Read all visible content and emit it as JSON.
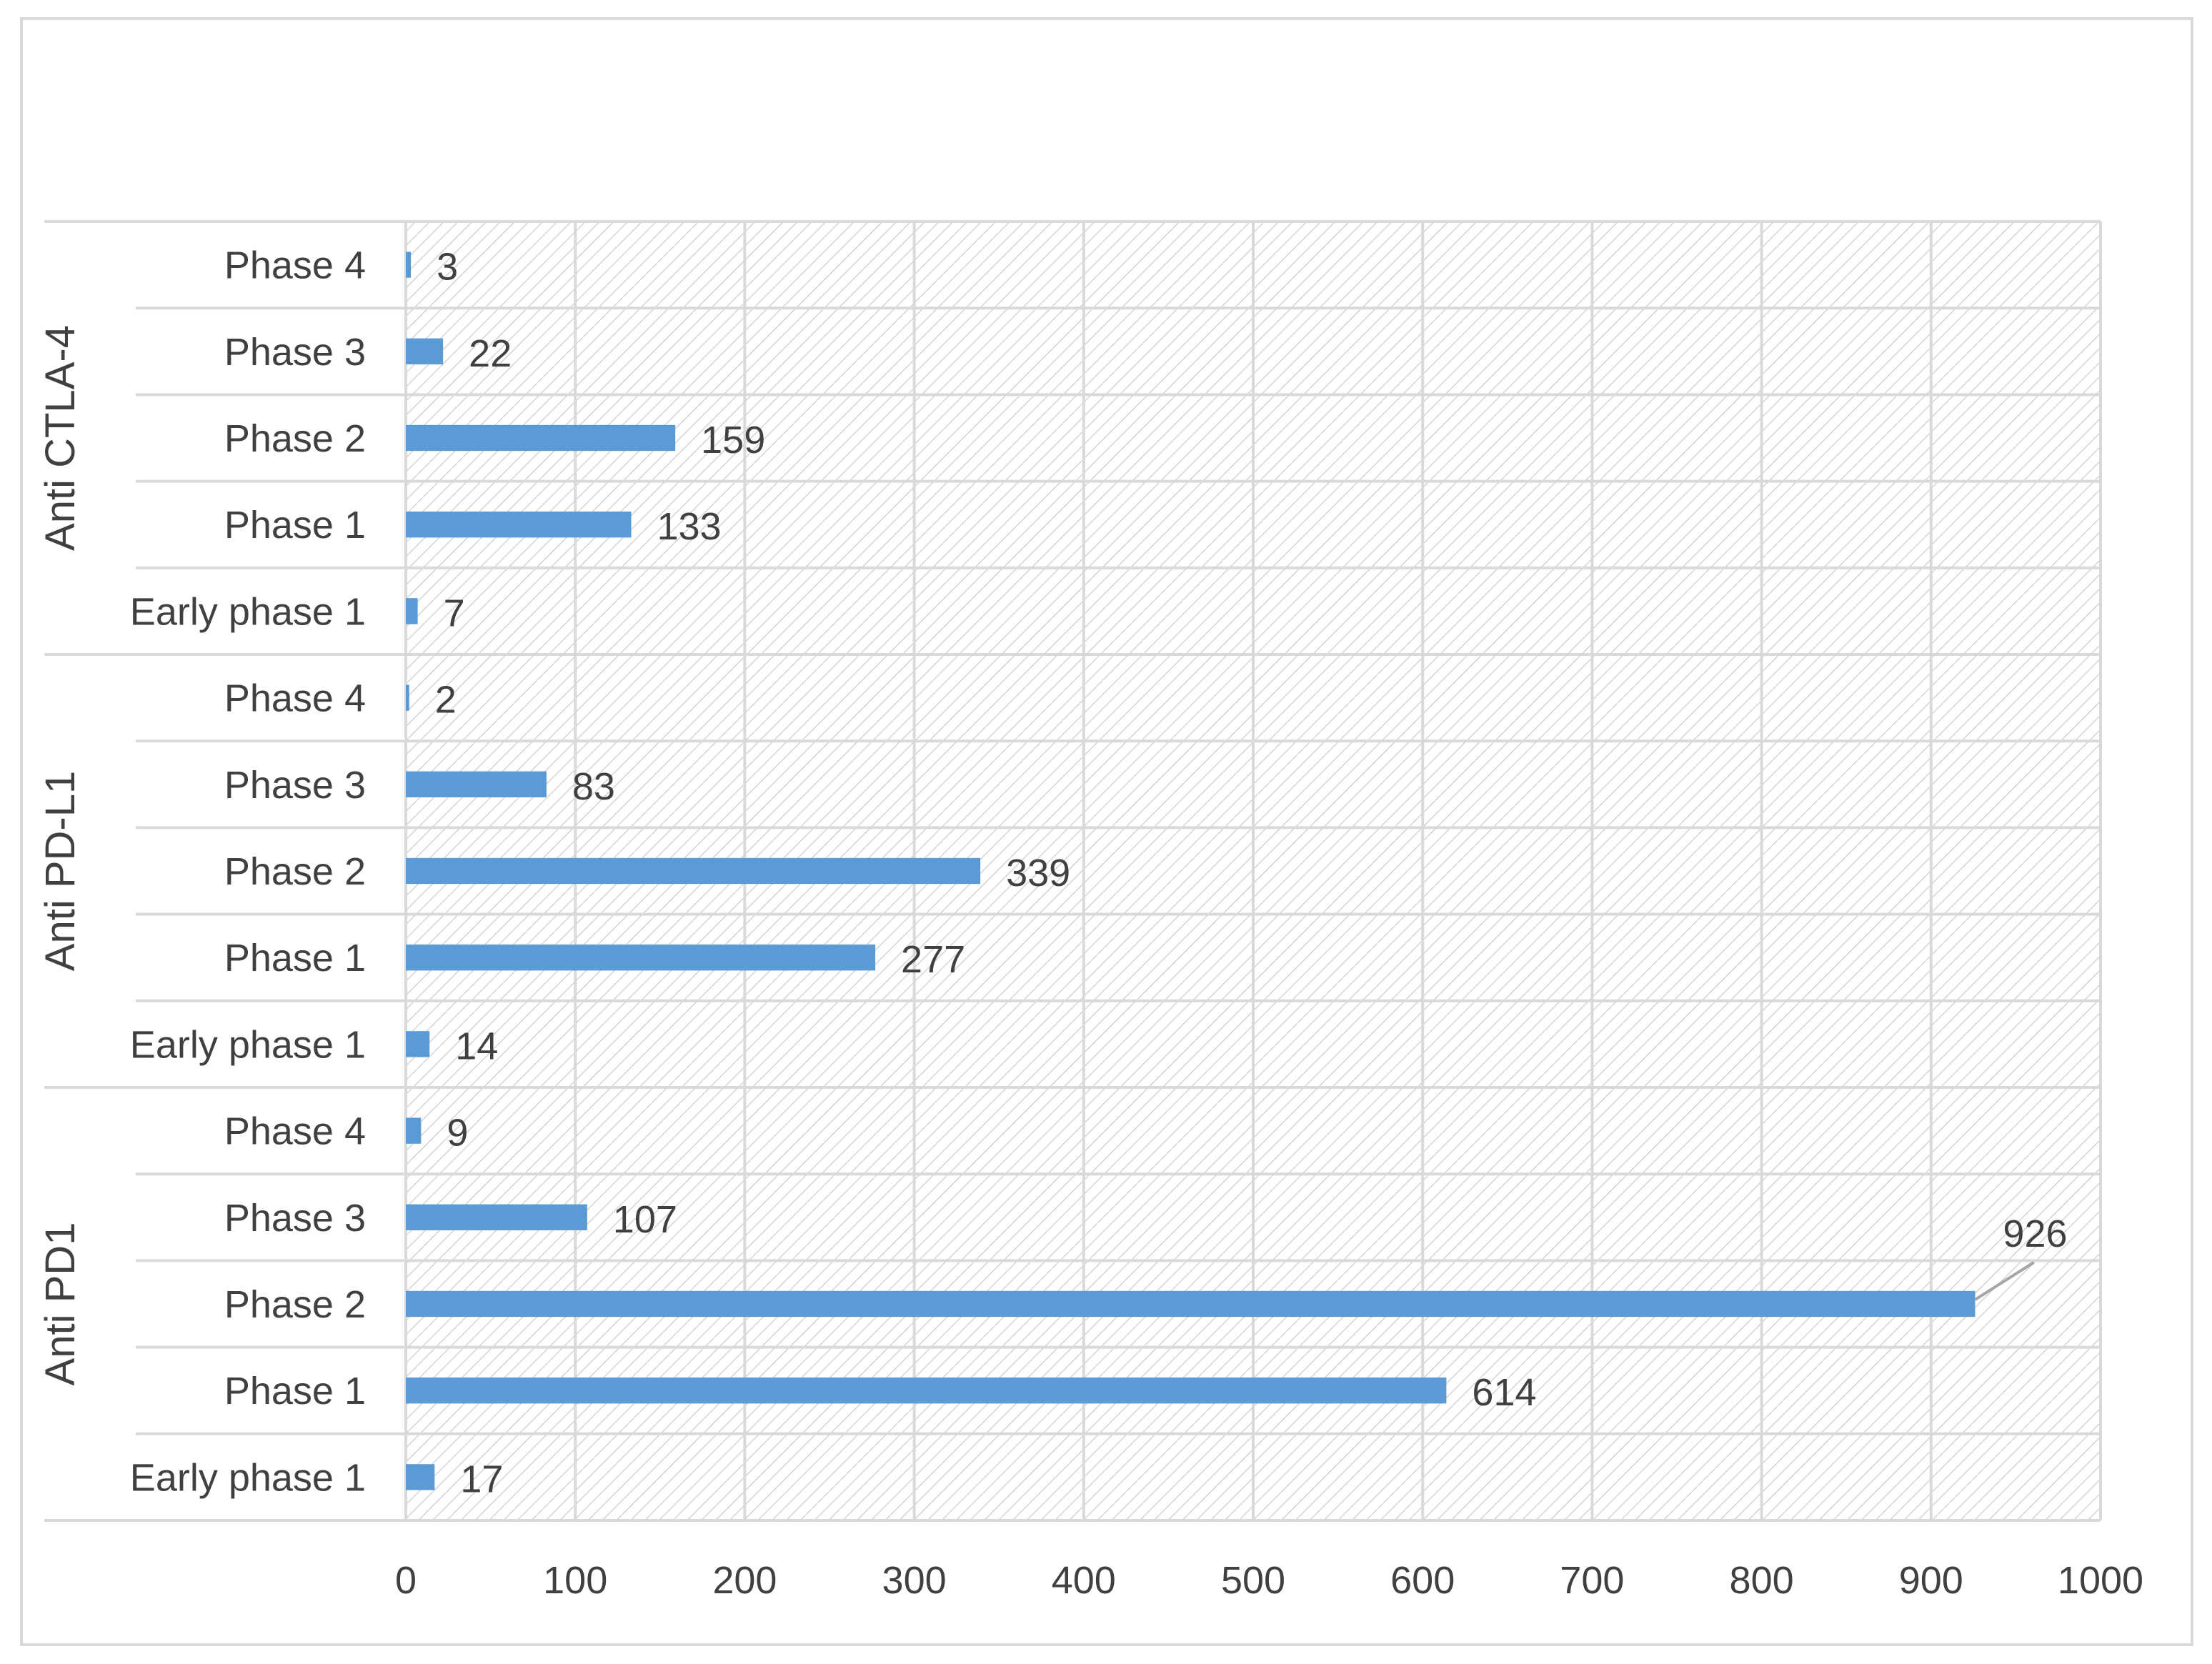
{
  "chart_data": {
    "type": "bar",
    "orientation": "horizontal",
    "groups": [
      {
        "name": "Anti CTLA-4",
        "categories": [
          "Phase 4",
          "Phase 3",
          "Phase 2",
          "Phase 1",
          "Early phase 1"
        ],
        "values": [
          3,
          22,
          159,
          133,
          7
        ]
      },
      {
        "name": "Anti PD-L1",
        "categories": [
          "Phase 4",
          "Phase 3",
          "Phase 2",
          "Phase 1",
          "Early phase 1"
        ],
        "values": [
          2,
          83,
          339,
          277,
          14
        ]
      },
      {
        "name": "Anti PD1",
        "categories": [
          "Phase 4",
          "Phase 3",
          "Phase 2",
          "Phase 1",
          "Early phase 1"
        ],
        "values": [
          9,
          107,
          926,
          614,
          17
        ]
      }
    ],
    "xlim": [
      0,
      1000
    ],
    "xticks": [
      "0",
      "100",
      "200",
      "300",
      "400",
      "500",
      "600",
      "700",
      "800",
      "900",
      "1000"
    ],
    "grid": true,
    "bar_color": "#5b9bd5",
    "title": "",
    "xlabel": "",
    "ylabel": ""
  }
}
